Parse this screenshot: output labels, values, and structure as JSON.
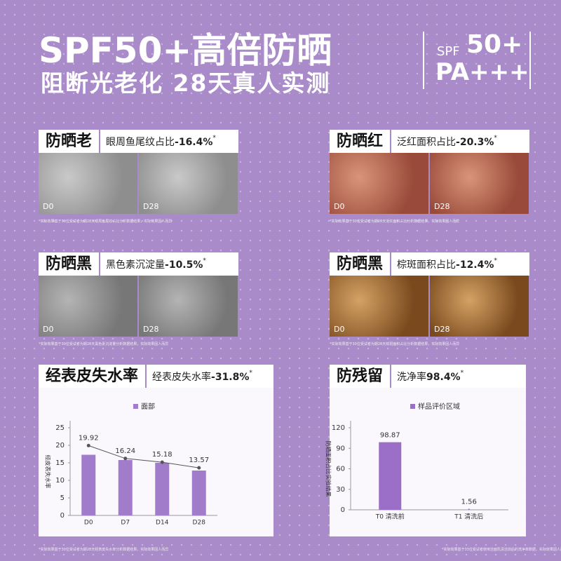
{
  "header": {
    "title": "SPF50+高倍防晒",
    "subtitle": "阻断光老化 28天真人实测"
  },
  "badge": {
    "spf": "SPF",
    "number": "50+",
    "pa": "PA+++"
  },
  "panels": [
    {
      "label": "防晒老",
      "metric": "眼周鱼尾纹占比",
      "value": "-16.4%",
      "mark": "*",
      "before": "D0",
      "after": "D28",
      "footnote": "*实际效果基于30位受试者为期28天眼周鱼尾纹占比分析数据结果，实际效果因人而异"
    },
    {
      "label": "防晒红",
      "metric": "泛红面积占比",
      "value": "-20.3%",
      "mark": "*",
      "before": "D0",
      "after": "D28",
      "footnote": "*实际效果基于30位受试者为期28天泛红面积占比分析数据结果，实际效果因人而异"
    },
    {
      "label": "防晒黑",
      "metric": "黑色素沉淀量",
      "value": "-10.5%",
      "mark": "*",
      "before": "D0",
      "after": "D28",
      "footnote": "*实际效果基于30位受试者为期28天黑色素沉淀量分析数据结果，实际效果因人而异"
    },
    {
      "label": "防晒黑",
      "metric": "棕斑面积占比",
      "value": "-12.4%",
      "mark": "*",
      "before": "D0",
      "after": "D28",
      "footnote": "*实际效果基于30位受试者为期28天棕斑面积占比分析数据结果，实际效果因人而异"
    }
  ],
  "chart_panels": [
    {
      "label": "经表皮失水率",
      "metric": "经表皮失水率",
      "value": "-31.8%",
      "mark": "*",
      "footnote": "*实际效果基于30位受试者为期28天经表皮失水率分析数据结果，实际效果因人而异"
    },
    {
      "label": "防残留",
      "metric": "洗净率",
      "value": "98.4%",
      "mark": "*",
      "footnote": "*实际效果基于33位受试者使用洁面乳清洁前后的洗净率数据，实际效果因人而异"
    }
  ],
  "chart_data": [
    {
      "type": "bar",
      "y_label": "经皮表失水率",
      "categories": [
        "D0",
        "D7",
        "D14",
        "D28"
      ],
      "series": [
        {
          "name": "面部",
          "color": "#a17ccb",
          "values": [
            17.3,
            15.8,
            15.0,
            12.8
          ]
        },
        {
          "type": "line",
          "color": "#555555",
          "values": [
            19.92,
            16.24,
            15.18,
            13.57
          ]
        }
      ],
      "ylim": [
        0,
        25
      ],
      "yticks": [
        0,
        5,
        10,
        15,
        20,
        25
      ]
    },
    {
      "type": "bar",
      "y_label": "防晒面积占比实验结果",
      "categories": [
        "T0 清洗前",
        "T1 清洗后"
      ],
      "series": [
        {
          "name": "样品评价区域",
          "color": "#9b6fc8",
          "values": [
            98.87,
            1.56
          ]
        }
      ],
      "ylim": [
        0,
        120
      ],
      "yticks": [
        0,
        30,
        60,
        90,
        120
      ]
    }
  ]
}
